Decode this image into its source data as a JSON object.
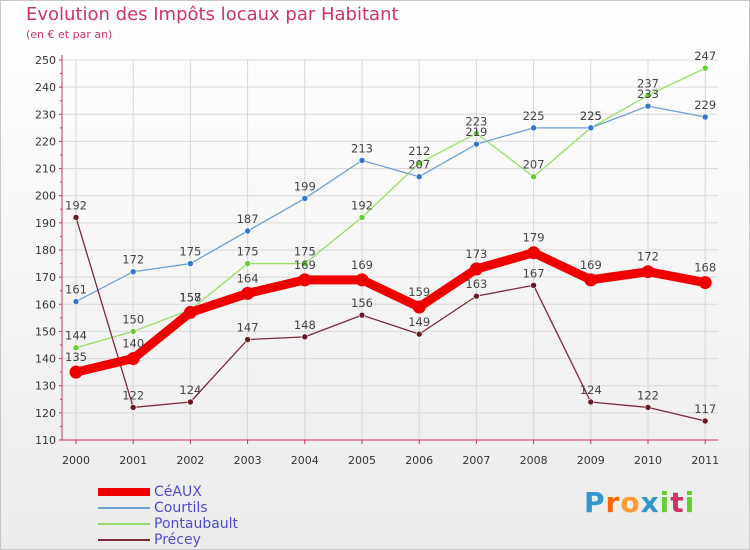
{
  "title": "Evolution des Impôts locaux par Habitant",
  "subtitle": "(en € et par an)",
  "logo": {
    "letters": [
      "P",
      "r",
      "o",
      "x",
      "i",
      "t",
      "i"
    ],
    "colors": [
      "#3399cc",
      "#ff6600",
      "#ff9933",
      "#3399cc",
      "#66cc33",
      "#cc3366",
      "#66cc33"
    ]
  },
  "chart_data": {
    "type": "line",
    "title": "Evolution des Impôts locaux par Habitant",
    "ylabel": "(en € et par an)",
    "xlabel": "",
    "ylim": [
      110,
      250
    ],
    "yticks": [
      110,
      120,
      130,
      140,
      150,
      160,
      170,
      180,
      190,
      200,
      210,
      220,
      230,
      240,
      250
    ],
    "categories": [
      "2000",
      "2001",
      "2002",
      "2003",
      "2004",
      "2005",
      "2006",
      "2007",
      "2008",
      "2009",
      "2010",
      "2011"
    ],
    "series": [
      {
        "name": "Pontaubault",
        "color": "#99dd66",
        "marker": "#66cc33",
        "width": "thin",
        "values": [
          144,
          150,
          158,
          175,
          175,
          192,
          212,
          223,
          207,
          225,
          237,
          247
        ]
      },
      {
        "name": "Courtils",
        "color": "#6fa0d0",
        "marker": "#3377cc",
        "width": "thin",
        "values": [
          161,
          172,
          175,
          187,
          199,
          213,
          207,
          219,
          225,
          225,
          233,
          229
        ]
      },
      {
        "name": "Précey",
        "color": "#7a2a3a",
        "marker": "#661a22",
        "width": "thin",
        "values": [
          192,
          122,
          124,
          147,
          148,
          156,
          149,
          163,
          167,
          124,
          122,
          117
        ]
      },
      {
        "name": "CéAUX",
        "color": "#ee0000",
        "marker": "#ee0000",
        "width": "thick",
        "values": [
          135,
          140,
          157,
          164,
          169,
          169,
          159,
          173,
          179,
          169,
          172,
          168
        ]
      }
    ],
    "legend": [
      "CéAUX",
      "Courtils",
      "Pontaubault",
      "Précey"
    ],
    "legend_position": "bottom-left",
    "grid": true
  }
}
